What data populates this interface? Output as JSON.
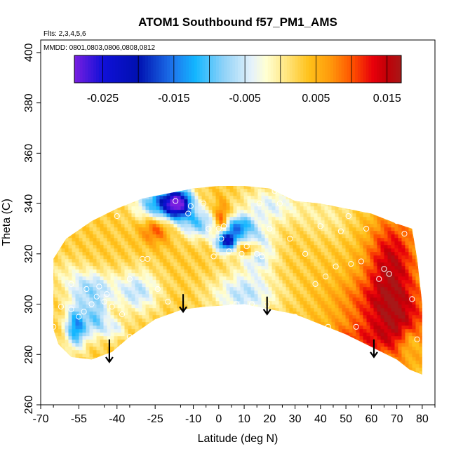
{
  "chart_data": {
    "type": "heatmap",
    "title": "ATOM1 Southbound f57_PM1_AMS",
    "flights_note": "Flts: 2,3,4,5,6",
    "dates_note": "MMDD: 0801,0803,0806,0808,0812",
    "xlabel": "Latitude (deg N)",
    "ylabel": "Theta (C)",
    "xlim": [
      -70,
      85
    ],
    "ylim": [
      260,
      405
    ],
    "x_ticks": [
      -70,
      -55,
      -40,
      -25,
      -10,
      0,
      10,
      20,
      30,
      40,
      50,
      60,
      70,
      80
    ],
    "x_tick_labels": [
      "-70",
      "-55",
      "-40",
      "-25",
      "-10",
      "0",
      "10",
      "20",
      "30",
      "40",
      "50",
      "60",
      "70",
      "80"
    ],
    "y_ticks": [
      260,
      280,
      300,
      320,
      340,
      360,
      380,
      400
    ],
    "y_tick_labels": [
      "260",
      "280",
      "300",
      "320",
      "340",
      "360",
      "380",
      "400"
    ],
    "colorbar": {
      "min": -0.029,
      "max": 0.017,
      "tick_values": [
        -0.025,
        -0.015,
        -0.005,
        0.005,
        0.015
      ],
      "tick_labels": [
        "-0.025",
        "-0.015",
        "-0.005",
        "0.005",
        "0.015"
      ],
      "stops": [
        {
          "v": -0.029,
          "c": "#7a1fe0"
        },
        {
          "v": -0.025,
          "c": "#1010d8"
        },
        {
          "v": -0.02,
          "c": "#0010b0"
        },
        {
          "v": -0.015,
          "c": "#1e78ee"
        },
        {
          "v": -0.012,
          "c": "#12b6ff"
        },
        {
          "v": -0.008,
          "c": "#8fd2f8"
        },
        {
          "v": -0.004,
          "c": "#e6f2fb"
        },
        {
          "v": -0.002,
          "c": "#ffffd2"
        },
        {
          "v": 0.001,
          "c": "#ffe47a"
        },
        {
          "v": 0.004,
          "c": "#ffc11a"
        },
        {
          "v": 0.007,
          "c": "#ff9a0c"
        },
        {
          "v": 0.01,
          "c": "#ff5400"
        },
        {
          "v": 0.013,
          "c": "#e8000a"
        },
        {
          "v": 0.015,
          "c": "#c00008"
        },
        {
          "v": 0.017,
          "c": "#a81818"
        }
      ]
    },
    "field": {
      "background_value": 0.003,
      "anomalies": [
        {
          "x": -16,
          "y": 340,
          "sx": 4,
          "sy": 4,
          "v": -0.026
        },
        {
          "x": -24,
          "y": 340,
          "sx": 6,
          "sy": 5,
          "v": -0.012
        },
        {
          "x": -8,
          "y": 332,
          "sx": 5,
          "sy": 4,
          "v": -0.009
        },
        {
          "x": 3,
          "y": 325,
          "sx": 3,
          "sy": 3,
          "v": -0.022
        },
        {
          "x": 8,
          "y": 331,
          "sx": 4,
          "sy": 3,
          "v": -0.012
        },
        {
          "x": 15,
          "y": 322,
          "sx": 5,
          "sy": 6,
          "v": -0.008
        },
        {
          "x": 10,
          "y": 304,
          "sx": 9,
          "sy": 6,
          "v": -0.006
        },
        {
          "x": -32,
          "y": 305,
          "sx": 6,
          "sy": 6,
          "v": -0.006
        },
        {
          "x": -50,
          "y": 306,
          "sx": 6,
          "sy": 5,
          "v": -0.007
        },
        {
          "x": -56,
          "y": 291,
          "sx": 3,
          "sy": 6,
          "v": -0.014
        },
        {
          "x": -48,
          "y": 294,
          "sx": 3,
          "sy": 5,
          "v": -0.008
        },
        {
          "x": -41,
          "y": 290,
          "sx": 3,
          "sy": 3,
          "v": -0.004
        },
        {
          "x": 20,
          "y": 339,
          "sx": 8,
          "sy": 5,
          "v": -0.004
        },
        {
          "x": 1,
          "y": 333,
          "sx": 2,
          "sy": 5,
          "v": 0.013
        },
        {
          "x": 12,
          "y": 322,
          "sx": 4,
          "sy": 2,
          "v": 0.014
        },
        {
          "x": -25,
          "y": 330,
          "sx": 4,
          "sy": 4,
          "v": 0.011
        },
        {
          "x": 68,
          "y": 318,
          "sx": 7,
          "sy": 12,
          "v": 0.014
        },
        {
          "x": 62,
          "y": 300,
          "sx": 12,
          "sy": 9,
          "v": 0.01
        },
        {
          "x": 72,
          "y": 290,
          "sx": 8,
          "sy": 10,
          "v": 0.011
        },
        {
          "x": 55,
          "y": 285,
          "sx": 10,
          "sy": 5,
          "v": 0.009
        },
        {
          "x": 42,
          "y": 335,
          "sx": 8,
          "sy": 6,
          "v": 0.0
        },
        {
          "x": -60,
          "y": 312,
          "sx": 5,
          "sy": 5,
          "v": 0.0
        },
        {
          "x": 75,
          "y": 285,
          "sx": 3,
          "sy": 4,
          "v": -0.003
        }
      ]
    },
    "arrows": [
      {
        "x": -43,
        "y_top": 286,
        "y_bottom": 277
      },
      {
        "x": -14,
        "y_top": 304,
        "y_bottom": 297
      },
      {
        "x": 19,
        "y_top": 303,
        "y_bottom": 296
      },
      {
        "x": 61,
        "y_top": 286,
        "y_bottom": 279
      }
    ],
    "points": [
      [
        -65,
        291
      ],
      [
        -62,
        299
      ],
      [
        -58,
        298
      ],
      [
        -55,
        295
      ],
      [
        -53,
        297
      ],
      [
        -50,
        300
      ],
      [
        -48,
        303
      ],
      [
        -45,
        301
      ],
      [
        -42,
        299
      ],
      [
        -38,
        296
      ],
      [
        -35,
        287
      ],
      [
        -47,
        307
      ],
      [
        -52,
        306
      ],
      [
        -44,
        304
      ],
      [
        -58,
        308
      ],
      [
        -35,
        310
      ],
      [
        -40,
        335
      ],
      [
        -30,
        318
      ],
      [
        -24,
        306
      ],
      [
        -20,
        301
      ],
      [
        -17,
        341
      ],
      [
        -11,
        339
      ],
      [
        -6,
        340
      ],
      [
        -4,
        330
      ],
      [
        -2,
        319
      ],
      [
        0,
        330
      ],
      [
        1,
        326
      ],
      [
        2,
        331
      ],
      [
        4,
        321
      ],
      [
        5,
        299
      ],
      [
        7,
        300
      ],
      [
        9,
        320
      ],
      [
        11,
        323
      ],
      [
        13,
        300
      ],
      [
        15,
        320
      ],
      [
        16,
        340
      ],
      [
        17,
        319
      ],
      [
        19,
        300
      ],
      [
        20,
        330
      ],
      [
        22,
        345
      ],
      [
        24,
        340
      ],
      [
        28,
        326
      ],
      [
        30,
        295
      ],
      [
        34,
        320
      ],
      [
        38,
        308
      ],
      [
        40,
        331
      ],
      [
        42,
        311
      ],
      [
        43,
        291
      ],
      [
        46,
        315
      ],
      [
        48,
        329
      ],
      [
        51,
        335
      ],
      [
        52,
        316
      ],
      [
        54,
        291
      ],
      [
        56,
        317
      ],
      [
        58,
        330
      ],
      [
        63,
        310
      ],
      [
        65,
        314
      ],
      [
        67,
        312
      ],
      [
        70,
        333
      ],
      [
        73,
        328
      ],
      [
        76,
        302
      ],
      [
        78,
        286
      ],
      [
        -28,
        318
      ],
      [
        -12,
        336
      ]
    ],
    "region_top": [
      [
        -65,
        318
      ],
      [
        -60,
        326
      ],
      [
        -50,
        333
      ],
      [
        -40,
        338
      ],
      [
        -30,
        342
      ],
      [
        -20,
        344
      ],
      [
        -10,
        346
      ],
      [
        0,
        347
      ],
      [
        10,
        347
      ],
      [
        20,
        346
      ],
      [
        30,
        341
      ],
      [
        40,
        340
      ],
      [
        50,
        338
      ],
      [
        60,
        336
      ],
      [
        70,
        332
      ],
      [
        76,
        330
      ],
      [
        78,
        318
      ],
      [
        80,
        300
      ],
      [
        80,
        272
      ]
    ],
    "region_bottom": [
      [
        -65,
        290
      ],
      [
        -63,
        284
      ],
      [
        -58,
        279
      ],
      [
        -50,
        278
      ],
      [
        -42,
        281
      ],
      [
        -35,
        287
      ],
      [
        -25,
        294
      ],
      [
        -14,
        298
      ],
      [
        -5,
        299
      ],
      [
        10,
        300
      ],
      [
        20,
        298
      ],
      [
        30,
        296
      ],
      [
        40,
        292
      ],
      [
        50,
        288
      ],
      [
        60,
        283
      ],
      [
        70,
        278
      ],
      [
        75,
        274
      ],
      [
        80,
        272
      ]
    ]
  }
}
